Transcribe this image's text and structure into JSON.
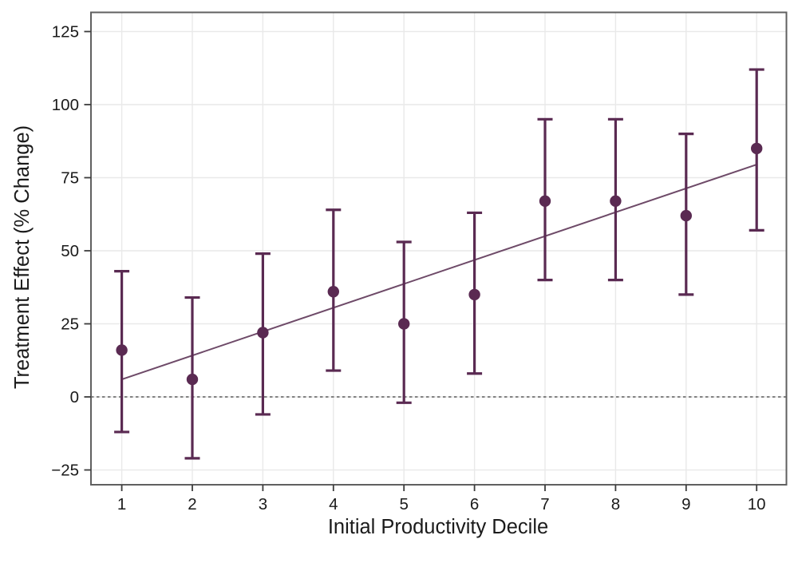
{
  "chart_data": {
    "type": "scatter",
    "title": "",
    "xlabel": "Initial Productivity Decile",
    "ylabel": "Treatment Effect (% Change)",
    "x_ticks": [
      1,
      2,
      3,
      4,
      5,
      6,
      7,
      8,
      9,
      10
    ],
    "x_tick_labels": [
      "1",
      "2",
      "3",
      "4",
      "5",
      "6",
      "7",
      "8",
      "9",
      "10"
    ],
    "y_ticks": [
      -25,
      0,
      25,
      50,
      75,
      100,
      125
    ],
    "y_tick_labels": [
      "−25",
      "0",
      "25",
      "50",
      "75",
      "100",
      "125"
    ],
    "xlim": [
      0.56,
      10.42
    ],
    "ylim": [
      -30,
      131.7
    ],
    "grid": "major-light-gray",
    "legend": "none",
    "reference_line": {
      "y": 0,
      "style": "dashed"
    },
    "points": [
      {
        "decile": 1,
        "estimate": 16,
        "ci_low": -12,
        "ci_high": 43
      },
      {
        "decile": 2,
        "estimate": 6,
        "ci_low": -21,
        "ci_high": 34
      },
      {
        "decile": 3,
        "estimate": 22,
        "ci_low": -6,
        "ci_high": 49
      },
      {
        "decile": 4,
        "estimate": 36,
        "ci_low": 9,
        "ci_high": 64
      },
      {
        "decile": 5,
        "estimate": 25,
        "ci_low": -2,
        "ci_high": 53
      },
      {
        "decile": 6,
        "estimate": 35,
        "ci_low": 8,
        "ci_high": 63
      },
      {
        "decile": 7,
        "estimate": 67,
        "ci_low": 40,
        "ci_high": 95
      },
      {
        "decile": 8,
        "estimate": 67,
        "ci_low": 40,
        "ci_high": 95
      },
      {
        "decile": 9,
        "estimate": 62,
        "ci_low": 35,
        "ci_high": 90
      },
      {
        "decile": 10,
        "estimate": 85,
        "ci_low": 57,
        "ci_high": 112
      }
    ],
    "trend_line": {
      "x_start": 1,
      "y_start": 6,
      "x_end": 10,
      "y_end": 79.5
    },
    "colors": {
      "point": "#5a2a52",
      "error_bar": "#5a2a52",
      "trend": "#6e4a68",
      "grid": "#e9e9e9",
      "panel_border": "#606060",
      "axis_tick": "#3c3c3c",
      "text": "#1b1b1b",
      "zero_line": "#3f3f3f",
      "background": "#ffffff"
    }
  }
}
